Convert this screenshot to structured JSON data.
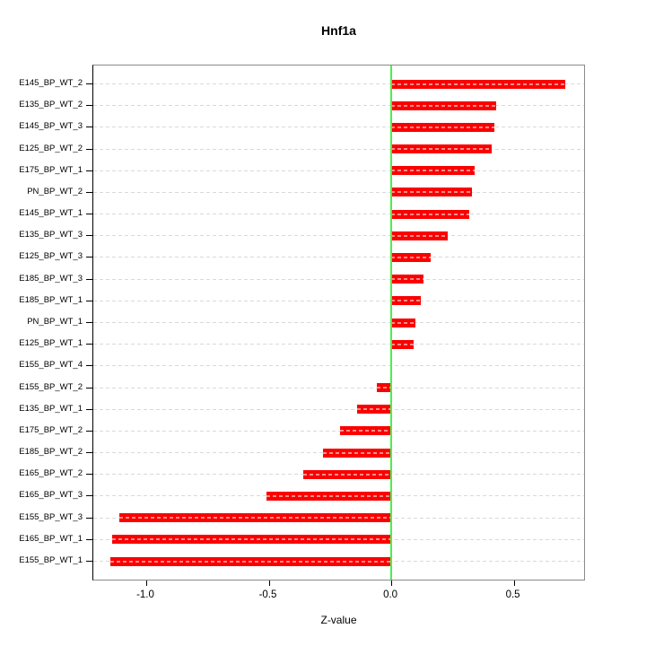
{
  "chart_data": {
    "type": "bar",
    "orientation": "horizontal",
    "title": "Hnf1a",
    "xlabel": "Z-value",
    "categories": [
      "E145_BP_WT_2",
      "E135_BP_WT_2",
      "E145_BP_WT_3",
      "E125_BP_WT_2",
      "E175_BP_WT_1",
      "PN_BP_WT_2",
      "E145_BP_WT_1",
      "E135_BP_WT_3",
      "E125_BP_WT_3",
      "E185_BP_WT_3",
      "E185_BP_WT_1",
      "PN_BP_WT_1",
      "E125_BP_WT_1",
      "E155_BP_WT_4",
      "E155_BP_WT_2",
      "E135_BP_WT_1",
      "E175_BP_WT_2",
      "E185_BP_WT_2",
      "E165_BP_WT_2",
      "E165_BP_WT_3",
      "E155_BP_WT_3",
      "E165_BP_WT_1",
      "E155_BP_WT_1"
    ],
    "values": [
      0.71,
      0.43,
      0.42,
      0.41,
      0.34,
      0.33,
      0.32,
      0.23,
      0.16,
      0.13,
      0.12,
      0.1,
      0.09,
      -0.005,
      -0.06,
      -0.14,
      -0.21,
      -0.28,
      -0.36,
      -0.51,
      -1.11,
      -1.14,
      -1.145
    ],
    "x_ticks": [
      {
        "value": -1.0,
        "label": "-1.0"
      },
      {
        "value": -0.5,
        "label": "-0.5"
      },
      {
        "value": 0.0,
        "label": "0.0"
      },
      {
        "value": 0.5,
        "label": "0.5"
      }
    ],
    "xlim": [
      -1.216,
      0.787
    ],
    "grid": "dashed horizontal line per category, light gray",
    "legend": "none",
    "zero_reference_line": 0.0,
    "colors": {
      "bar": "#fb0000",
      "zero_line": "#4aef4a",
      "grid": "#d9d9d9",
      "axis": "#000000",
      "box": "#8a8a8a"
    }
  }
}
